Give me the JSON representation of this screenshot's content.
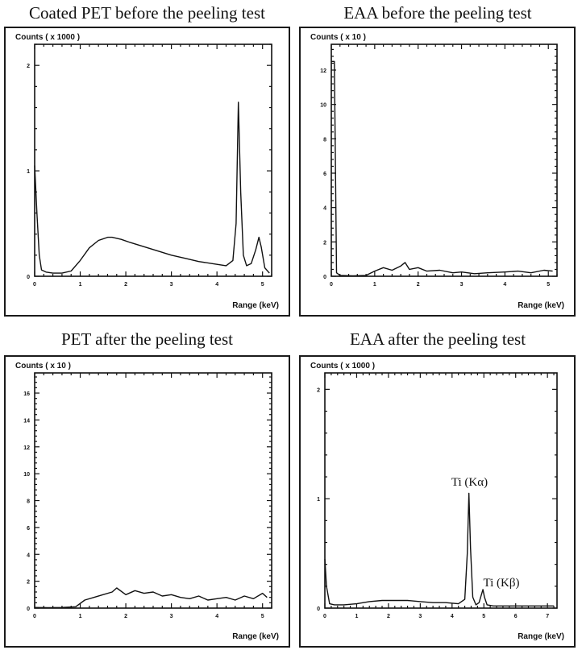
{
  "chart_data": [
    {
      "type": "line",
      "title": "Coated PET before the peeling test",
      "ylabel": "Counts ( x 1000 )",
      "xlabel": "Range (keV)",
      "xlim": [
        0,
        5.2
      ],
      "ylim": [
        0,
        2.2
      ],
      "xticks": [
        0,
        1,
        2,
        3,
        4,
        5
      ],
      "yticks": [
        0,
        1,
        2
      ],
      "annotations": [],
      "series": [
        {
          "x": [
            0,
            0.05,
            0.1,
            0.15,
            0.25,
            0.4,
            0.6,
            0.8,
            1.0,
            1.2,
            1.4,
            1.6,
            1.7,
            1.9,
            2.1,
            2.4,
            2.7,
            3.0,
            3.3,
            3.6,
            3.9,
            4.2,
            4.35,
            4.42,
            4.47,
            4.52,
            4.58,
            4.65,
            4.75,
            4.85,
            4.92,
            4.97,
            5.05,
            5.15
          ],
          "y": [
            1.05,
            0.6,
            0.2,
            0.06,
            0.04,
            0.03,
            0.03,
            0.05,
            0.15,
            0.27,
            0.34,
            0.37,
            0.37,
            0.35,
            0.32,
            0.28,
            0.24,
            0.2,
            0.17,
            0.14,
            0.12,
            0.1,
            0.15,
            0.5,
            1.65,
            0.8,
            0.2,
            0.1,
            0.12,
            0.25,
            0.37,
            0.28,
            0.08,
            0.03
          ]
        }
      ]
    },
    {
      "type": "line",
      "title": "EAA before the peeling test",
      "ylabel": "Counts ( x 10 )",
      "xlabel": "Range (keV)",
      "xlim": [
        0,
        5.2
      ],
      "ylim": [
        0,
        13.5
      ],
      "xticks": [
        0,
        1,
        2,
        3,
        4,
        5
      ],
      "yticks": [
        0,
        2,
        4,
        6,
        8,
        10,
        12
      ],
      "annotations": [],
      "series": [
        {
          "x": [
            0,
            0.03,
            0.07,
            0.12,
            0.2,
            0.5,
            0.8,
            1.0,
            1.2,
            1.4,
            1.6,
            1.7,
            1.8,
            2.0,
            2.2,
            2.5,
            2.8,
            3.0,
            3.3,
            3.6,
            4.0,
            4.3,
            4.6,
            4.9,
            5.1
          ],
          "y": [
            12.5,
            12.5,
            12.5,
            0.2,
            0.05,
            0.03,
            0.05,
            0.3,
            0.5,
            0.35,
            0.6,
            0.8,
            0.4,
            0.5,
            0.3,
            0.35,
            0.2,
            0.25,
            0.15,
            0.2,
            0.25,
            0.3,
            0.2,
            0.35,
            0.3
          ]
        }
      ]
    },
    {
      "type": "line",
      "title": "PET after the peeling test",
      "ylabel": "Counts ( x 10 )",
      "xlabel": "Range (keV)",
      "xlim": [
        0,
        5.2
      ],
      "ylim": [
        0,
        17.5
      ],
      "xticks": [
        0,
        1,
        2,
        3,
        4,
        5
      ],
      "yticks": [
        0,
        2,
        4,
        6,
        8,
        10,
        12,
        14,
        16
      ],
      "annotations": [],
      "series": [
        {
          "x": [
            0,
            0.3,
            0.6,
            0.9,
            1.1,
            1.3,
            1.5,
            1.7,
            1.8,
            2.0,
            2.2,
            2.4,
            2.6,
            2.8,
            3.0,
            3.2,
            3.4,
            3.6,
            3.8,
            4.0,
            4.2,
            4.4,
            4.6,
            4.8,
            5.0,
            5.1
          ],
          "y": [
            0.05,
            0.03,
            0.05,
            0.1,
            0.6,
            0.8,
            1.0,
            1.2,
            1.5,
            1.0,
            1.3,
            1.1,
            1.2,
            0.9,
            1.0,
            0.8,
            0.7,
            0.9,
            0.6,
            0.7,
            0.8,
            0.6,
            0.9,
            0.7,
            1.1,
            0.8
          ]
        }
      ]
    },
    {
      "type": "line",
      "title": "EAA after the peeling test",
      "ylabel": "Counts ( x 1000 )",
      "xlabel": "Range (keV)",
      "xlim": [
        0,
        7.3
      ],
      "ylim": [
        0,
        2.15
      ],
      "xticks": [
        0,
        1,
        2,
        3,
        4,
        5,
        6,
        7
      ],
      "yticks": [
        0,
        1,
        2
      ],
      "annotations": [
        {
          "text": "Ti (Kα)",
          "x": 4.55,
          "y": 1.12
        },
        {
          "text": "Ti (Kβ)",
          "x": 5.55,
          "y": 0.2
        }
      ],
      "series": [
        {
          "x": [
            0,
            0.05,
            0.15,
            0.3,
            0.6,
            1.0,
            1.4,
            1.8,
            2.2,
            2.6,
            3.0,
            3.4,
            3.8,
            4.2,
            4.4,
            4.48,
            4.53,
            4.58,
            4.65,
            4.75,
            4.85,
            4.92,
            4.97,
            5.02,
            5.1,
            5.3,
            6.0,
            6.5,
            7.0,
            7.2
          ],
          "y": [
            0.45,
            0.2,
            0.04,
            0.03,
            0.03,
            0.04,
            0.06,
            0.07,
            0.07,
            0.07,
            0.06,
            0.05,
            0.05,
            0.04,
            0.08,
            0.5,
            1.05,
            0.55,
            0.1,
            0.03,
            0.05,
            0.12,
            0.17,
            0.1,
            0.03,
            0.02,
            0.02,
            0.02,
            0.02,
            0.02
          ]
        }
      ]
    }
  ]
}
